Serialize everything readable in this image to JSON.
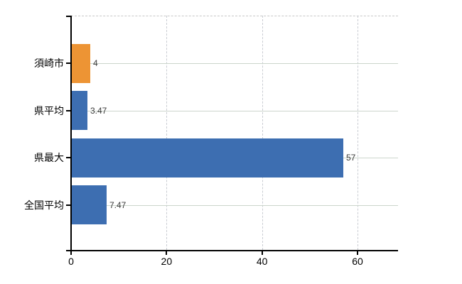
{
  "chart_data": {
    "type": "bar",
    "orientation": "horizontal",
    "title": "",
    "xlabel": "",
    "ylabel": "",
    "categories": [
      "須崎市",
      "県平均",
      "県最大",
      "全国平均"
    ],
    "values": [
      4,
      3.47,
      57,
      7.47
    ],
    "value_labels": [
      "4",
      "3.47",
      "57",
      "7.47"
    ],
    "bar_colors": [
      "#ED9434",
      "#3D6EB1",
      "#3D6EB1",
      "#3D6EB1"
    ],
    "xlim": [
      0,
      68.5
    ],
    "xticks": [
      0,
      20,
      40,
      60
    ],
    "xtick_labels": [
      "0",
      "20",
      "40",
      "60"
    ],
    "grid": true,
    "legend": false,
    "colors": {
      "highlight_bar": "#ED9434",
      "default_bar": "#3D6EB1",
      "axis": "#000000",
      "h_gridline": "#ccd6cc",
      "v_gridline": "#c9ccd2",
      "plot_top_border": "#c6c6c6",
      "background": "#ffffff"
    }
  }
}
